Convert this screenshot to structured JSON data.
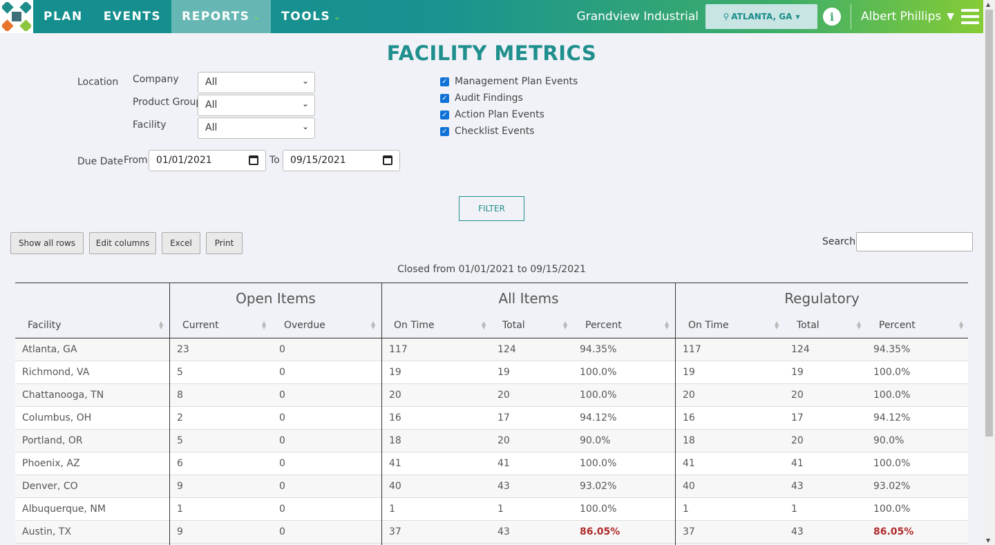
{
  "nav": {
    "items": [
      {
        "label": "PLAN"
      },
      {
        "label": "EVENTS"
      },
      {
        "label": "REPORTS"
      },
      {
        "label": "TOOLS"
      }
    ],
    "company": "Grandview Industrial",
    "location": "ATLANTA, GA",
    "user": "Albert Phillips",
    "accent_color": "#1f8f8d"
  },
  "page": {
    "title": "FACILITY METRICS"
  },
  "filters": {
    "location_label": "Location",
    "company_label": "Company",
    "company_value": "All",
    "product_group_label": "Product Group",
    "product_group_value": "All",
    "facility_label": "Facility",
    "facility_value": "All",
    "due_date_label": "Due Date",
    "from_label": "From",
    "from_value": "01/01/2021",
    "to_label": "To",
    "to_value": "09/15/2021",
    "checkboxes": [
      {
        "label": "Management Plan Events",
        "checked": true
      },
      {
        "label": "Audit Findings",
        "checked": true
      },
      {
        "label": "Action Plan Events",
        "checked": true
      },
      {
        "label": "Checklist Events",
        "checked": true
      }
    ],
    "filter_button": "FILTER"
  },
  "toolbar": {
    "show_all_rows": "Show all rows",
    "edit_columns": "Edit columns",
    "excel": "Excel",
    "print": "Print",
    "search_label": "Search:"
  },
  "table": {
    "caption": "Closed from 01/01/2021 to 09/15/2021",
    "groups": {
      "open_items": "Open Items",
      "all_items": "All Items",
      "regulatory": "Regulatory"
    },
    "columns": {
      "facility": "Facility",
      "current": "Current",
      "overdue": "Overdue",
      "all_on_time": "On Time",
      "all_total": "Total",
      "all_percent": "Percent",
      "reg_on_time": "On Time",
      "reg_total": "Total",
      "reg_percent": "Percent"
    },
    "rows": [
      {
        "facility": "Atlanta, GA",
        "current": "23",
        "overdue": "0",
        "all_on_time": "117",
        "all_total": "124",
        "all_percent": "94.35%",
        "reg_on_time": "117",
        "reg_total": "124",
        "reg_percent": "94.35%",
        "flag": false
      },
      {
        "facility": "Richmond, VA",
        "current": "5",
        "overdue": "0",
        "all_on_time": "19",
        "all_total": "19",
        "all_percent": "100.0%",
        "reg_on_time": "19",
        "reg_total": "19",
        "reg_percent": "100.0%",
        "flag": false
      },
      {
        "facility": "Chattanooga, TN",
        "current": "8",
        "overdue": "0",
        "all_on_time": "20",
        "all_total": "20",
        "all_percent": "100.0%",
        "reg_on_time": "20",
        "reg_total": "20",
        "reg_percent": "100.0%",
        "flag": false
      },
      {
        "facility": "Columbus, OH",
        "current": "2",
        "overdue": "0",
        "all_on_time": "16",
        "all_total": "17",
        "all_percent": "94.12%",
        "reg_on_time": "16",
        "reg_total": "17",
        "reg_percent": "94.12%",
        "flag": false
      },
      {
        "facility": "Portland, OR",
        "current": "5",
        "overdue": "0",
        "all_on_time": "18",
        "all_total": "20",
        "all_percent": "90.0%",
        "reg_on_time": "18",
        "reg_total": "20",
        "reg_percent": "90.0%",
        "flag": false
      },
      {
        "facility": "Phoenix, AZ",
        "current": "6",
        "overdue": "0",
        "all_on_time": "41",
        "all_total": "41",
        "all_percent": "100.0%",
        "reg_on_time": "41",
        "reg_total": "41",
        "reg_percent": "100.0%",
        "flag": false
      },
      {
        "facility": "Denver, CO",
        "current": "9",
        "overdue": "0",
        "all_on_time": "40",
        "all_total": "43",
        "all_percent": "93.02%",
        "reg_on_time": "40",
        "reg_total": "43",
        "reg_percent": "93.02%",
        "flag": false
      },
      {
        "facility": "Albuquerque, NM",
        "current": "1",
        "overdue": "0",
        "all_on_time": "1",
        "all_total": "1",
        "all_percent": "100.0%",
        "reg_on_time": "1",
        "reg_total": "1",
        "reg_percent": "100.0%",
        "flag": false
      },
      {
        "facility": "Austin, TX",
        "current": "9",
        "overdue": "0",
        "all_on_time": "37",
        "all_total": "43",
        "all_percent": "86.05%",
        "reg_on_time": "37",
        "reg_total": "43",
        "reg_percent": "86.05%",
        "flag": true
      }
    ]
  }
}
